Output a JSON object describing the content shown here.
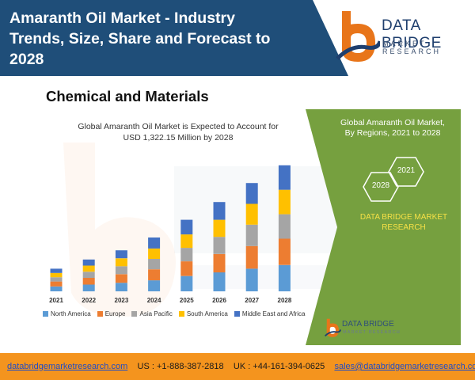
{
  "header": {
    "title_lines": [
      "Amaranth Oil Market - Industry",
      "Trends, Size, Share and Forecast to",
      "2028"
    ],
    "brand": "DATA BRIDGE",
    "brand_sub": "MARKET RESEARCH"
  },
  "section_heading": "Chemical and Materials",
  "chart_data": {
    "type": "bar",
    "stacked": true,
    "title_lines": [
      "Global Amaranth Oil Market is Expected to Account for",
      "USD 1,322.15 Million by 2028"
    ],
    "categories": [
      "2021",
      "2022",
      "2023",
      "2024",
      "2025",
      "2026",
      "2027",
      "2028"
    ],
    "series": [
      {
        "name": "North America",
        "color": "#5b9bd5",
        "values": [
          8,
          11,
          14,
          18,
          25,
          31,
          37,
          43
        ]
      },
      {
        "name": "Europe",
        "color": "#ed7d31",
        "values": [
          8,
          11,
          14,
          18,
          24,
          30,
          37,
          43
        ]
      },
      {
        "name": "Asia Pacific",
        "color": "#a5a5a5",
        "values": [
          7,
          10,
          13,
          17,
          22,
          28,
          35,
          40
        ]
      },
      {
        "name": "South America",
        "color": "#ffc000",
        "values": [
          7,
          10,
          13,
          17,
          22,
          28,
          34,
          40
        ]
      },
      {
        "name": "Middle East and Africa",
        "color": "#4472c4",
        "values": [
          7,
          10,
          13,
          18,
          24,
          29,
          34,
          40
        ]
      }
    ],
    "ylim": [
      0,
      220
    ],
    "grid": false,
    "legend_position": "bottom"
  },
  "panel": {
    "title_lines": [
      "Global Amaranth Oil Market,",
      "By Regions, 2021 to 2028"
    ],
    "hex_start": "2028",
    "hex_end": "2021",
    "brand_lines": [
      "DATA BRIDGE MARKET",
      "RESEARCH"
    ],
    "small_brand": "DATA BRIDGE",
    "small_sub": "MARKET RESEARCH"
  },
  "colors": {
    "header_blue": "#1f4e79",
    "panel_green": "#76a03f",
    "footer_orange": "#f4941e",
    "brand_orange": "#e8751a"
  },
  "footer": {
    "website": "databridgemarketresearch.com",
    "us_phone": "US : +1-888-387-2818",
    "uk_phone": "UK : +44-161-394-0625",
    "email": "sales@databridgemarketresearch.com"
  }
}
